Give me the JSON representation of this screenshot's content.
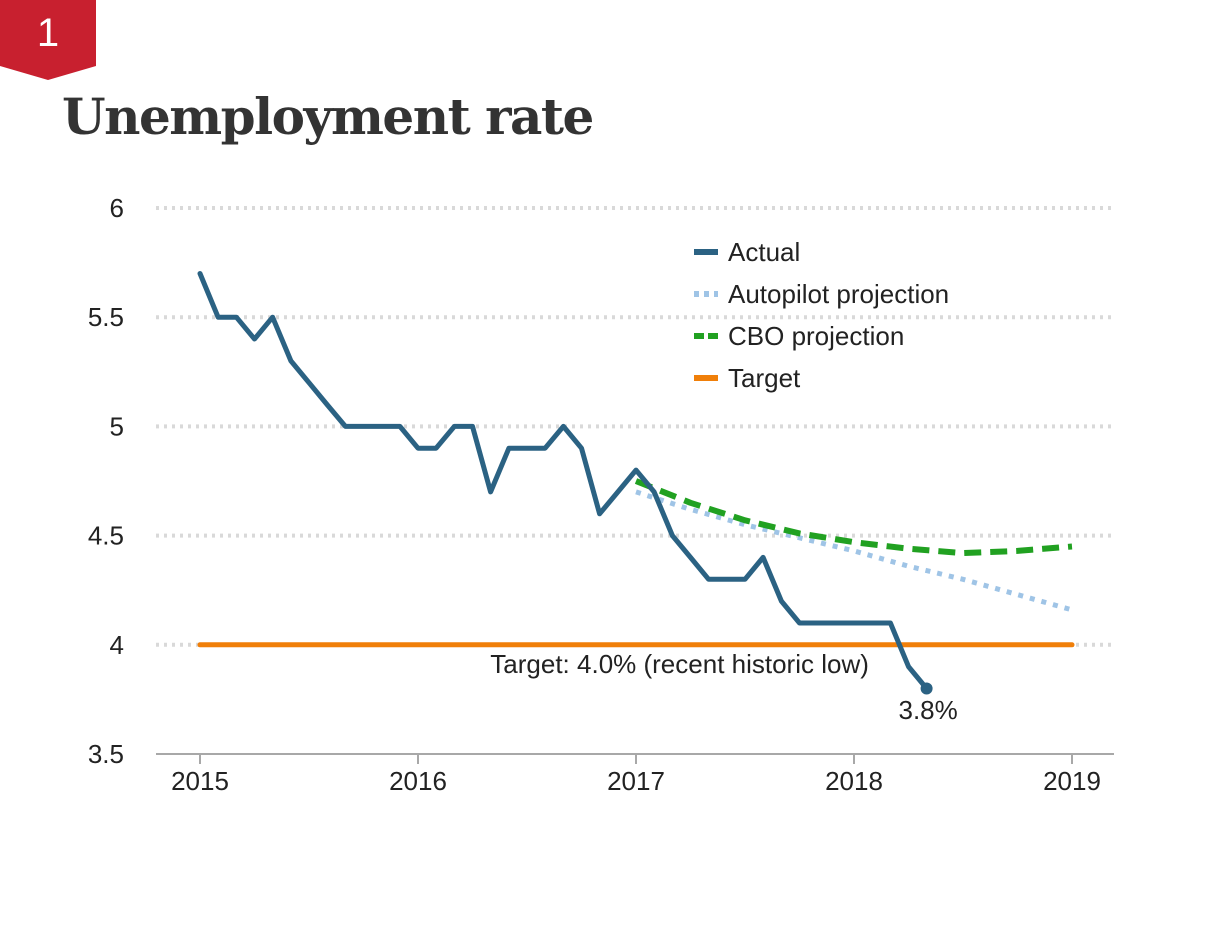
{
  "badge": {
    "number": "1",
    "color": "#c8202f"
  },
  "title": "Unemployment rate",
  "chart_data": {
    "type": "line",
    "title": "Unemployment rate",
    "xlabel": "",
    "ylabel": "",
    "xlim": [
      2015,
      2019
    ],
    "ylim": [
      3.5,
      6
    ],
    "x_ticks": [
      {
        "value": 2015,
        "label": "2015"
      },
      {
        "value": 2016,
        "label": "2016"
      },
      {
        "value": 2017,
        "label": "2017"
      },
      {
        "value": 2018,
        "label": "2018"
      },
      {
        "value": 2019,
        "label": "2019"
      }
    ],
    "y_ticks": [
      {
        "value": 3.5,
        "label": "3.5"
      },
      {
        "value": 4,
        "label": "4"
      },
      {
        "value": 4.5,
        "label": "4.5"
      },
      {
        "value": 5,
        "label": "5"
      },
      {
        "value": 5.5,
        "label": "5.5"
      },
      {
        "value": 6,
        "label": "6"
      }
    ],
    "grid": "horizontal dotted",
    "legend_position": "top-right",
    "series": [
      {
        "name": "Actual",
        "style": "solid",
        "color": "#2b6283",
        "x": [
          2015.0,
          2015.083,
          2015.167,
          2015.25,
          2015.333,
          2015.417,
          2015.5,
          2015.583,
          2015.667,
          2015.75,
          2015.833,
          2015.917,
          2016.0,
          2016.083,
          2016.167,
          2016.25,
          2016.333,
          2016.417,
          2016.5,
          2016.583,
          2016.667,
          2016.75,
          2016.833,
          2016.917,
          2017.0,
          2017.083,
          2017.167,
          2017.25,
          2017.333,
          2017.417,
          2017.5,
          2017.583,
          2017.667,
          2017.75,
          2017.833,
          2017.917,
          2018.0,
          2018.083,
          2018.167,
          2018.25,
          2018.333
        ],
        "y": [
          5.7,
          5.5,
          5.5,
          5.4,
          5.5,
          5.3,
          5.2,
          5.1,
          5.0,
          5.0,
          5.0,
          5.0,
          4.9,
          4.9,
          5.0,
          5.0,
          4.7,
          4.9,
          4.9,
          4.9,
          5.0,
          4.9,
          4.6,
          4.7,
          4.8,
          4.7,
          4.5,
          4.4,
          4.3,
          4.3,
          4.3,
          4.4,
          4.2,
          4.1,
          4.1,
          4.1,
          4.1,
          4.1,
          4.1,
          3.9,
          3.8
        ]
      },
      {
        "name": "Autopilot projection",
        "style": "dotted",
        "color": "#9fc4e6",
        "x": [
          2017.0,
          2017.25,
          2017.5,
          2017.75,
          2018.0,
          2018.25,
          2018.5,
          2018.75,
          2019.0
        ],
        "y": [
          4.7,
          4.62,
          4.55,
          4.49,
          4.43,
          4.36,
          4.3,
          4.23,
          4.16
        ]
      },
      {
        "name": "CBO projection",
        "style": "dashed",
        "color": "#21a121",
        "x": [
          2017.0,
          2017.25,
          2017.5,
          2017.75,
          2018.0,
          2018.25,
          2018.5,
          2018.75,
          2019.0
        ],
        "y": [
          4.75,
          4.65,
          4.57,
          4.51,
          4.47,
          4.44,
          4.42,
          4.43,
          4.45
        ]
      },
      {
        "name": "Target",
        "style": "solid",
        "color": "#f07f09",
        "x": [
          2015.0,
          2019.0
        ],
        "y": [
          4.0,
          4.0
        ]
      }
    ],
    "annotations": [
      {
        "text": "Target: 4.0% (recent historic low)",
        "x": 2017.2,
        "y": 3.87
      },
      {
        "text": "3.8%",
        "x": 2018.34,
        "y": 3.66
      }
    ],
    "end_point": {
      "x": 2018.333,
      "y": 3.8
    }
  }
}
